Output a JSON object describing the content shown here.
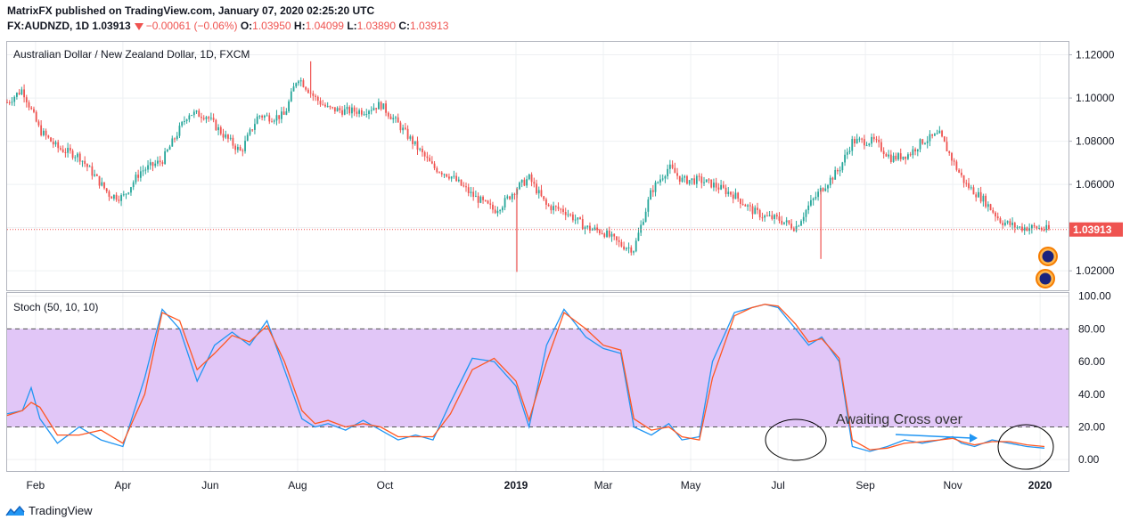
{
  "header": {
    "line1": "MatrixFX published on TradingView.com, January 07, 2020 02:25:20 UTC",
    "symbol": "FX:AUDNZD, 1D",
    "last": "1.03913",
    "change": "−0.00061 (−0.06%)",
    "open_label": "O:",
    "open": "1.03950",
    "high_label": "H:",
    "high": "1.04099",
    "low_label": "L:",
    "low": "1.03890",
    "close_label": "C:",
    "close": "1.03913"
  },
  "footer": {
    "brand": "TradingView",
    "logo_icon": "tradingview-logo-icon"
  },
  "colors": {
    "up": "#26a69a",
    "down": "#ef5350",
    "stoch_k": "#2196f3",
    "stoch_d": "#ff5722",
    "band": "#e1c6f7",
    "price_line": "#ef5350"
  },
  "chart_data": [
    {
      "type": "candlestick",
      "title": "Australian Dollar / New Zealand Dollar, 1D, FXCM",
      "price_label": "1.03913",
      "y_ticks": [
        "1.12000",
        "1.10000",
        "1.08000",
        "1.06000",
        "1.04000",
        "1.02000"
      ],
      "ylim": [
        1.011,
        1.126
      ],
      "x_ticks": [
        "Feb",
        "Apr",
        "Jun",
        "Aug",
        "Oct",
        "2019",
        "Mar",
        "May",
        "Jul",
        "Sep",
        "Nov",
        "2020"
      ],
      "x_tick_time": [
        0.3,
        2.3,
        4.3,
        6.3,
        8.3,
        11.3,
        13.3,
        15.3,
        17.3,
        19.3,
        21.3,
        23.3
      ],
      "xlim": [
        -0.35,
        23.95
      ],
      "path_time": [
        -0.35,
        0,
        0.4,
        0.8,
        1.3,
        2,
        2.3,
        2.7,
        3.2,
        3.8,
        4.2,
        4.6,
        5,
        5.4,
        5.7,
        6,
        6.3,
        6.7,
        7,
        7.4,
        7.8,
        8.2,
        8.6,
        9,
        9.4,
        9.8,
        10.3,
        10.8,
        11,
        11.3,
        11.6,
        12,
        12.4,
        12.9,
        13.3,
        13.7,
        14,
        14.4,
        14.8,
        15.1,
        15.5,
        15.8,
        16.3,
        16.7,
        17,
        17.3,
        17.7,
        18,
        18.3,
        18.7,
        19,
        19.5,
        19.9,
        20.3,
        20.6,
        21,
        21.4,
        21.6,
        22,
        22.4,
        22.8,
        23.2,
        23.5
      ],
      "path_close": [
        1.098,
        1.104,
        1.085,
        1.077,
        1.073,
        1.055,
        1.054,
        1.066,
        1.071,
        1.093,
        1.092,
        1.083,
        1.075,
        1.092,
        1.091,
        1.092,
        1.11,
        1.1,
        1.095,
        1.094,
        1.094,
        1.097,
        1.088,
        1.078,
        1.068,
        1.064,
        1.055,
        1.048,
        1.051,
        1.058,
        1.063,
        1.05,
        1.048,
        1.04,
        1.038,
        1.032,
        1.03,
        1.057,
        1.068,
        1.062,
        1.062,
        1.06,
        1.055,
        1.048,
        1.045,
        1.044,
        1.04,
        1.05,
        1.058,
        1.067,
        1.08,
        1.08,
        1.072,
        1.074,
        1.08,
        1.083,
        1.067,
        1.06,
        1.053,
        1.043,
        1.04,
        1.04,
        1.039
      ],
      "spikes": [
        {
          "time": 11.32,
          "low": 1.0195
        },
        {
          "time": 18.28,
          "low": 1.0255
        },
        {
          "time": 6.6,
          "high": 1.117
        }
      ]
    },
    {
      "type": "line",
      "title": "Stoch (50, 10, 10)",
      "y_ticks": [
        "100.00",
        "80.00",
        "60.00",
        "40.00",
        "20.00",
        "0.00"
      ],
      "ylim": [
        -7,
        102
      ],
      "band": [
        20,
        80
      ],
      "annotation": "Awaiting Cross over",
      "series": [
        {
          "name": "%K",
          "x": [
            -0.35,
            0,
            0.2,
            0.4,
            0.8,
            1.3,
            1.8,
            2.3,
            2.8,
            3.2,
            3.6,
            4.0,
            4.4,
            4.8,
            5.2,
            5.6,
            6.0,
            6.4,
            6.7,
            7.0,
            7.4,
            7.8,
            8.2,
            8.6,
            9.0,
            9.4,
            9.8,
            10.3,
            10.8,
            11.3,
            11.6,
            12.0,
            12.4,
            12.9,
            13.3,
            13.7,
            14.0,
            14.4,
            14.8,
            15.1,
            15.5,
            15.8,
            16.3,
            16.7,
            17.0,
            17.3,
            17.7,
            18.0,
            18.3,
            18.7,
            19.0,
            19.4,
            19.8,
            20.2,
            20.6,
            21.0,
            21.3,
            21.5,
            21.8,
            22.2,
            22.6,
            23.0,
            23.4
          ],
          "y": [
            28,
            30,
            44,
            25,
            10,
            20,
            12,
            8,
            50,
            92,
            80,
            48,
            70,
            78,
            70,
            85,
            55,
            25,
            20,
            22,
            18,
            24,
            18,
            12,
            15,
            12,
            35,
            62,
            60,
            45,
            20,
            70,
            92,
            75,
            68,
            65,
            20,
            15,
            22,
            12,
            14,
            60,
            90,
            93,
            95,
            93,
            80,
            70,
            75,
            60,
            8,
            5,
            8,
            12,
            10,
            12,
            14,
            10,
            8,
            12,
            10,
            8,
            7
          ]
        },
        {
          "name": "%D",
          "x": [
            -0.35,
            0,
            0.2,
            0.4,
            0.8,
            1.3,
            1.8,
            2.3,
            2.8,
            3.2,
            3.6,
            4.0,
            4.4,
            4.8,
            5.2,
            5.6,
            6.0,
            6.4,
            6.7,
            7.0,
            7.4,
            7.8,
            8.2,
            8.6,
            9.0,
            9.4,
            9.8,
            10.3,
            10.8,
            11.3,
            11.6,
            12.0,
            12.4,
            12.9,
            13.3,
            13.7,
            14.0,
            14.4,
            14.8,
            15.1,
            15.5,
            15.8,
            16.3,
            16.7,
            17.0,
            17.3,
            17.7,
            18.0,
            18.3,
            18.7,
            19.0,
            19.4,
            19.8,
            20.2,
            20.6,
            21.0,
            21.3,
            21.5,
            21.8,
            22.2,
            22.6,
            23.0,
            23.4
          ],
          "y": [
            27,
            30,
            35,
            32,
            15,
            15,
            18,
            10,
            40,
            90,
            85,
            55,
            65,
            76,
            72,
            82,
            60,
            30,
            22,
            24,
            20,
            22,
            20,
            14,
            14,
            14,
            28,
            55,
            62,
            48,
            24,
            60,
            90,
            80,
            70,
            67,
            25,
            18,
            20,
            14,
            12,
            50,
            88,
            93,
            95,
            94,
            83,
            72,
            74,
            62,
            12,
            6,
            7,
            10,
            11,
            12,
            13,
            11,
            9,
            11,
            11,
            9,
            8
          ]
        }
      ]
    }
  ]
}
